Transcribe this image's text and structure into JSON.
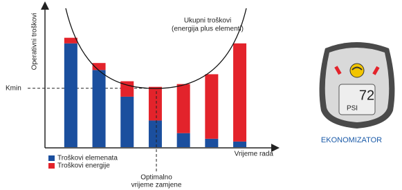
{
  "chart_data": {
    "type": "stacked-bar",
    "y_label": "Operativni troškovi",
    "x_label": "Vrijeme rada",
    "curve_label": [
      "Ukupni troškovi",
      "(energija plus elementi)"
    ],
    "optimum_label": [
      "Optimalno",
      "vrijeme zamjene"
    ],
    "kmin_label": "Kmin",
    "kmin": 42,
    "categories": [
      null,
      null,
      null,
      null,
      null,
      null,
      null
    ],
    "series": [
      {
        "name": "Troškovi elemenata",
        "color": "#1b4f9e",
        "values": [
          74,
          55,
          36,
          19,
          10,
          6,
          4
        ]
      },
      {
        "name": "Troškovi energije",
        "color": "#e3232b",
        "values": [
          4,
          5,
          11,
          24,
          35,
          46,
          70
        ]
      }
    ],
    "ylim": [
      0,
      100
    ]
  },
  "gauge": {
    "reading": "72",
    "unit": "PSI",
    "label": "EKONOMIZATOR"
  }
}
